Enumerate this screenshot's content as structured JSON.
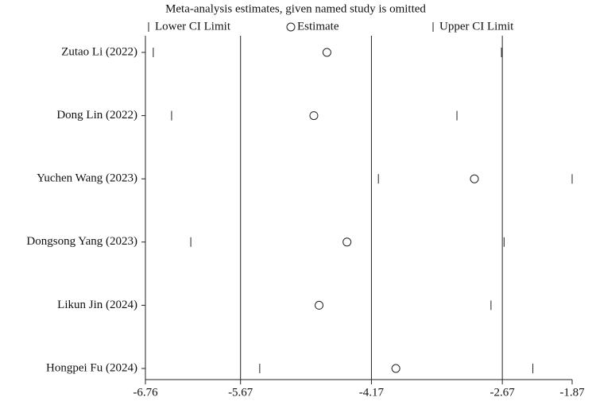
{
  "chart_data": {
    "type": "sensitivity",
    "title": "Meta-analysis estimates, given named study is omitted",
    "categories": [
      "Zutao Li  (2022)",
      "Dong Lin  (2022)",
      "Yuchen Wang (2023)",
      "Dongsong Yang  (2023)",
      "Likun Jin  (2024)",
      "Hongpei Fu (2024)"
    ],
    "series": [
      {
        "name": "Lower CI Limit",
        "marker": "bar",
        "values": [
          -6.67,
          -6.46,
          -4.09,
          -6.24,
          -6.76,
          -5.45
        ]
      },
      {
        "name": "Estimate",
        "marker": "circle",
        "values": [
          -4.68,
          -4.83,
          -2.99,
          -4.45,
          -4.77,
          -3.89
        ]
      },
      {
        "name": "Upper CI Limit",
        "marker": "bar",
        "values": [
          -2.68,
          -3.19,
          -1.87,
          -2.65,
          -2.8,
          -2.32
        ]
      }
    ],
    "xlim": [
      -6.76,
      -1.87
    ],
    "xticks": [
      -6.76,
      -5.67,
      -4.17,
      -2.67,
      -1.87
    ],
    "grid": true
  }
}
